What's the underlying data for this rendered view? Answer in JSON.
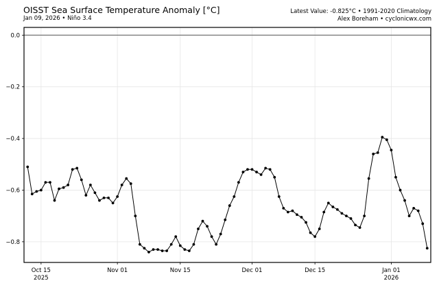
{
  "header": {
    "title": "OISST Sea Surface Temperature Anomaly [°C]",
    "subtitle": "Jan 09, 2026 • Niño 3.4",
    "right_line1": "Latest Value: -0.825°C • 1991-2020 Climatology",
    "right_line2": "Alex Boreham • cyclonicwx.com"
  },
  "chart_data": {
    "type": "line",
    "title": "OISST Sea Surface Temperature Anomaly [°C]",
    "xlabel": "",
    "ylabel": "",
    "x_start": "2025-10-12",
    "x_step": "1 day",
    "xlim_days_from_oct15": [
      -3.8,
      86.8
    ],
    "ylim": [
      -0.88,
      0.03
    ],
    "grid": true,
    "zero_line": true,
    "yticks": [
      0.0,
      -0.2,
      -0.4,
      -0.6,
      -0.8
    ],
    "ytick_labels": [
      "0.0",
      "−0.2",
      "−0.4",
      "−0.6",
      "−0.8"
    ],
    "xticks": [
      {
        "day": 0,
        "label": "Oct 15",
        "label2": "2025"
      },
      {
        "day": 17,
        "label": "Nov 01",
        "label2": ""
      },
      {
        "day": 31,
        "label": "Nov 15",
        "label2": ""
      },
      {
        "day": 47,
        "label": "Dec 01",
        "label2": ""
      },
      {
        "day": 61,
        "label": "Dec 15",
        "label2": ""
      },
      {
        "day": 78,
        "label": "Jan 01",
        "label2": "2026"
      }
    ],
    "values": [
      -0.51,
      -0.615,
      -0.605,
      -0.6,
      -0.57,
      -0.57,
      -0.64,
      -0.595,
      -0.59,
      -0.58,
      -0.52,
      -0.515,
      -0.56,
      -0.62,
      -0.58,
      -0.61,
      -0.64,
      -0.63,
      -0.63,
      -0.65,
      -0.625,
      -0.58,
      -0.555,
      -0.575,
      -0.7,
      -0.81,
      -0.825,
      -0.84,
      -0.83,
      -0.83,
      -0.835,
      -0.835,
      -0.81,
      -0.78,
      -0.815,
      -0.83,
      -0.835,
      -0.81,
      -0.75,
      -0.72,
      -0.74,
      -0.78,
      -0.81,
      -0.77,
      -0.715,
      -0.66,
      -0.625,
      -0.57,
      -0.53,
      -0.52,
      -0.52,
      -0.53,
      -0.54,
      -0.515,
      -0.52,
      -0.55,
      -0.625,
      -0.67,
      -0.685,
      -0.68,
      -0.695,
      -0.705,
      -0.725,
      -0.765,
      -0.78,
      -0.75,
      -0.685,
      -0.65,
      -0.665,
      -0.675,
      -0.69,
      -0.7,
      -0.71,
      -0.735,
      -0.745,
      -0.7,
      -0.555,
      -0.46,
      -0.455,
      -0.395,
      -0.405,
      -0.445,
      -0.55,
      -0.6,
      -0.64,
      -0.7,
      -0.67,
      -0.68,
      -0.73,
      -0.825
    ],
    "line_color": "#000000",
    "grid_color": "#e6e6e6"
  }
}
